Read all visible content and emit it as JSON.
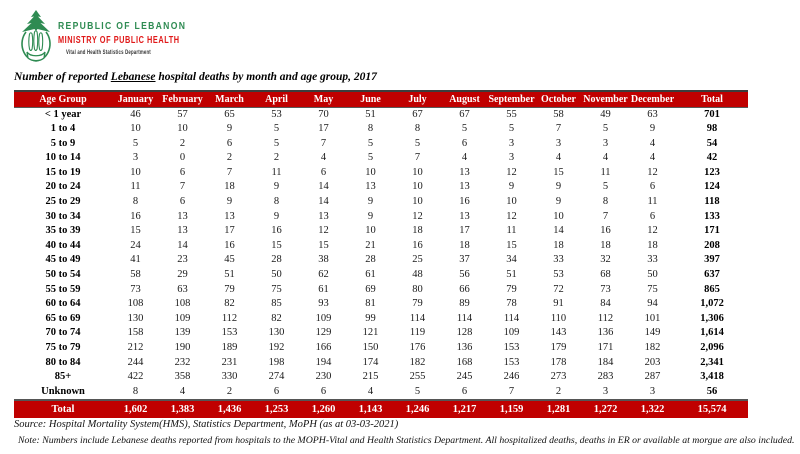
{
  "logo": {
    "line1": "REPUBLIC OF LEBANON",
    "line2": "MINISTRY OF PUBLIC HEALTH",
    "line3": "Vital and Health Statistics Department",
    "green": "#2e8b52",
    "red": "#e01818"
  },
  "title": {
    "prefix": "Number of reported ",
    "underlined": "Lebanese",
    "suffix": " hospital deaths by month and age group, 2017"
  },
  "table": {
    "header_bg": "#C00000",
    "header_text_color": "#ffffff",
    "columns": [
      "Age Group",
      "January",
      "February",
      "March",
      "April",
      "May",
      "June",
      "July",
      "August",
      "September",
      "October",
      "November",
      "December",
      "Total"
    ],
    "rows": [
      {
        "label": "< 1 year",
        "values": [
          46,
          57,
          65,
          53,
          70,
          51,
          67,
          67,
          55,
          58,
          49,
          63
        ],
        "total": "701"
      },
      {
        "label": "1 to 4",
        "values": [
          10,
          10,
          9,
          5,
          17,
          8,
          8,
          5,
          5,
          7,
          5,
          9
        ],
        "total": "98"
      },
      {
        "label": "5 to 9",
        "values": [
          5,
          2,
          6,
          5,
          7,
          5,
          5,
          6,
          3,
          3,
          3,
          4
        ],
        "total": "54"
      },
      {
        "label": "10 to 14",
        "values": [
          3,
          0,
          2,
          2,
          4,
          5,
          7,
          4,
          3,
          4,
          4,
          4
        ],
        "total": "42"
      },
      {
        "label": "15 to 19",
        "values": [
          10,
          6,
          7,
          11,
          6,
          10,
          10,
          13,
          12,
          15,
          11,
          12
        ],
        "total": "123"
      },
      {
        "label": "20 to 24",
        "values": [
          11,
          7,
          18,
          9,
          14,
          13,
          10,
          13,
          9,
          9,
          5,
          6
        ],
        "total": "124"
      },
      {
        "label": "25 to 29",
        "values": [
          8,
          6,
          9,
          8,
          14,
          9,
          10,
          16,
          10,
          9,
          8,
          11
        ],
        "total": "118"
      },
      {
        "label": "30 to 34",
        "values": [
          16,
          13,
          13,
          9,
          13,
          9,
          12,
          13,
          12,
          10,
          7,
          6
        ],
        "total": "133"
      },
      {
        "label": "35 to 39",
        "values": [
          15,
          13,
          17,
          16,
          12,
          10,
          18,
          17,
          11,
          14,
          16,
          12
        ],
        "total": "171"
      },
      {
        "label": "40 to 44",
        "values": [
          24,
          14,
          16,
          15,
          15,
          21,
          16,
          18,
          15,
          18,
          18,
          18
        ],
        "total": "208"
      },
      {
        "label": "45 to 49",
        "values": [
          41,
          23,
          45,
          28,
          38,
          28,
          25,
          37,
          34,
          33,
          32,
          33
        ],
        "total": "397"
      },
      {
        "label": "50 to 54",
        "values": [
          58,
          29,
          51,
          50,
          62,
          61,
          48,
          56,
          51,
          53,
          68,
          50
        ],
        "total": "637"
      },
      {
        "label": "55 to 59",
        "values": [
          73,
          63,
          79,
          75,
          61,
          69,
          80,
          66,
          79,
          72,
          73,
          75
        ],
        "total": "865"
      },
      {
        "label": "60 to 64",
        "values": [
          108,
          108,
          82,
          85,
          93,
          81,
          79,
          89,
          78,
          91,
          84,
          94
        ],
        "total": "1,072"
      },
      {
        "label": "65 to 69",
        "values": [
          130,
          109,
          112,
          82,
          109,
          99,
          114,
          114,
          114,
          110,
          112,
          101
        ],
        "total": "1,306"
      },
      {
        "label": "70 to 74",
        "values": [
          158,
          139,
          153,
          130,
          129,
          121,
          119,
          128,
          109,
          143,
          136,
          149
        ],
        "total": "1,614"
      },
      {
        "label": "75 to 79",
        "values": [
          212,
          190,
          189,
          192,
          166,
          150,
          176,
          136,
          153,
          179,
          171,
          182
        ],
        "total": "2,096"
      },
      {
        "label": "80 to 84",
        "values": [
          244,
          232,
          231,
          198,
          194,
          174,
          182,
          168,
          153,
          178,
          184,
          203
        ],
        "total": "2,341"
      },
      {
        "label": "85+",
        "values": [
          422,
          358,
          330,
          274,
          230,
          215,
          255,
          245,
          246,
          273,
          283,
          287
        ],
        "total": "3,418"
      },
      {
        "label": "Unknown",
        "values": [
          8,
          4,
          2,
          6,
          6,
          4,
          5,
          6,
          7,
          2,
          3,
          3
        ],
        "total": "56"
      }
    ],
    "total_row": {
      "label": "Total",
      "values": [
        "1,602",
        "1,383",
        "1,436",
        "1,253",
        "1,260",
        "1,143",
        "1,246",
        "1,217",
        "1,159",
        "1,281",
        "1,272",
        "1,322"
      ],
      "total": "15,574"
    }
  },
  "footer": {
    "source": "Source: Hospital Mortality System(HMS), Statistics Department, MoPH (as at 03-03-2021)",
    "note": "Note: Numbers include Lebanese deaths reported from hospitals to the MOPH-Vital and Health Statistics Department. All hospitalized deaths, deaths in ER or available at morgue are also included."
  }
}
